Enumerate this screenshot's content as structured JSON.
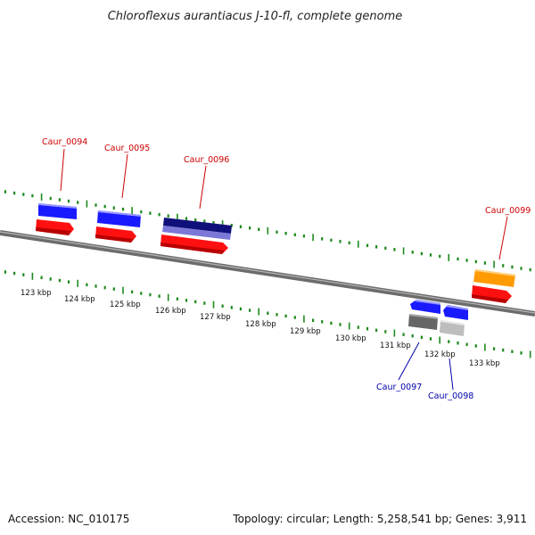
{
  "title": "Chloroflexus aurantiacus J-10-fl, complete genome",
  "footer": {
    "accession": "Accession: NC_010175",
    "topology": "Topology: circular; Length: 5,258,541 bp; Genes: 3,911"
  },
  "colors": {
    "backbone": "#7a7a7a",
    "tick": "#1f8a1f",
    "label_red": "#cc0000",
    "label_blue": "#0000aa",
    "gene_blue": "#1a1aff",
    "gene_red": "#ff1010",
    "gene_navy": "#10107a",
    "gene_lavender": "#7b78d8",
    "gene_orange": "#ff9a00",
    "gene_darkgray": "#666666",
    "gene_lightgray": "#bdbdbd"
  },
  "scale": {
    "unit": "kbp",
    "labels": [
      "123 kbp",
      "124 kbp",
      "125 kbp",
      "126 kbp",
      "127 kbp",
      "128 kbp",
      "129 kbp",
      "130 kbp",
      "131 kbp",
      "132 kbp",
      "133 kbp"
    ]
  },
  "genes": [
    {
      "name": "Caur_0094",
      "label_color": "label_red"
    },
    {
      "name": "Caur_0095",
      "label_color": "label_red"
    },
    {
      "name": "Caur_0096",
      "label_color": "label_red"
    },
    {
      "name": "Caur_0099",
      "label_color": "label_red"
    },
    {
      "name": "Caur_0097",
      "label_color": "label_blue"
    },
    {
      "name": "Caur_0098",
      "label_color": "label_blue"
    }
  ]
}
